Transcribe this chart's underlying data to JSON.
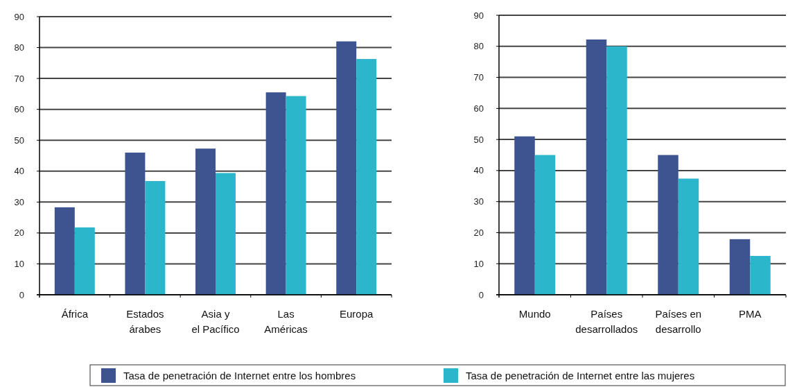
{
  "chart_data": [
    {
      "type": "bar",
      "categories": [
        "África",
        "Estados\nárabes",
        "Asia y\nel Pacífico",
        "Las\nAméricas",
        "Europa"
      ],
      "series": [
        {
          "name": "Tasa de penetración de Internet entre los hombres",
          "color": "#3d5491",
          "values": [
            28.3,
            46,
            47.3,
            65.5,
            82
          ]
        },
        {
          "name": "Tasa de penetración de Internet entre las mujeres",
          "color": "#2bb6cc",
          "values": [
            21.8,
            36.8,
            39.4,
            64.3,
            76.3
          ]
        }
      ],
      "ylim": [
        0,
        90
      ],
      "yticks": [
        0,
        10,
        20,
        30,
        40,
        50,
        60,
        70,
        80,
        90
      ],
      "grid": "y",
      "legend": "bottom"
    },
    {
      "type": "bar",
      "categories": [
        "Mundo",
        "Países\ndesarrollados",
        "Países en\ndesarrollo",
        "PMA"
      ],
      "series": [
        {
          "color": "#3d5491",
          "values": [
            51,
            82.2,
            45,
            17.9
          ]
        },
        {
          "color": "#2bb6cc",
          "values": [
            45,
            80,
            37.4,
            12.5
          ]
        }
      ],
      "ylim": [
        0,
        90
      ],
      "yticks": [
        0,
        10,
        20,
        30,
        40,
        50,
        60,
        70,
        80,
        90
      ],
      "grid": "y"
    }
  ]
}
